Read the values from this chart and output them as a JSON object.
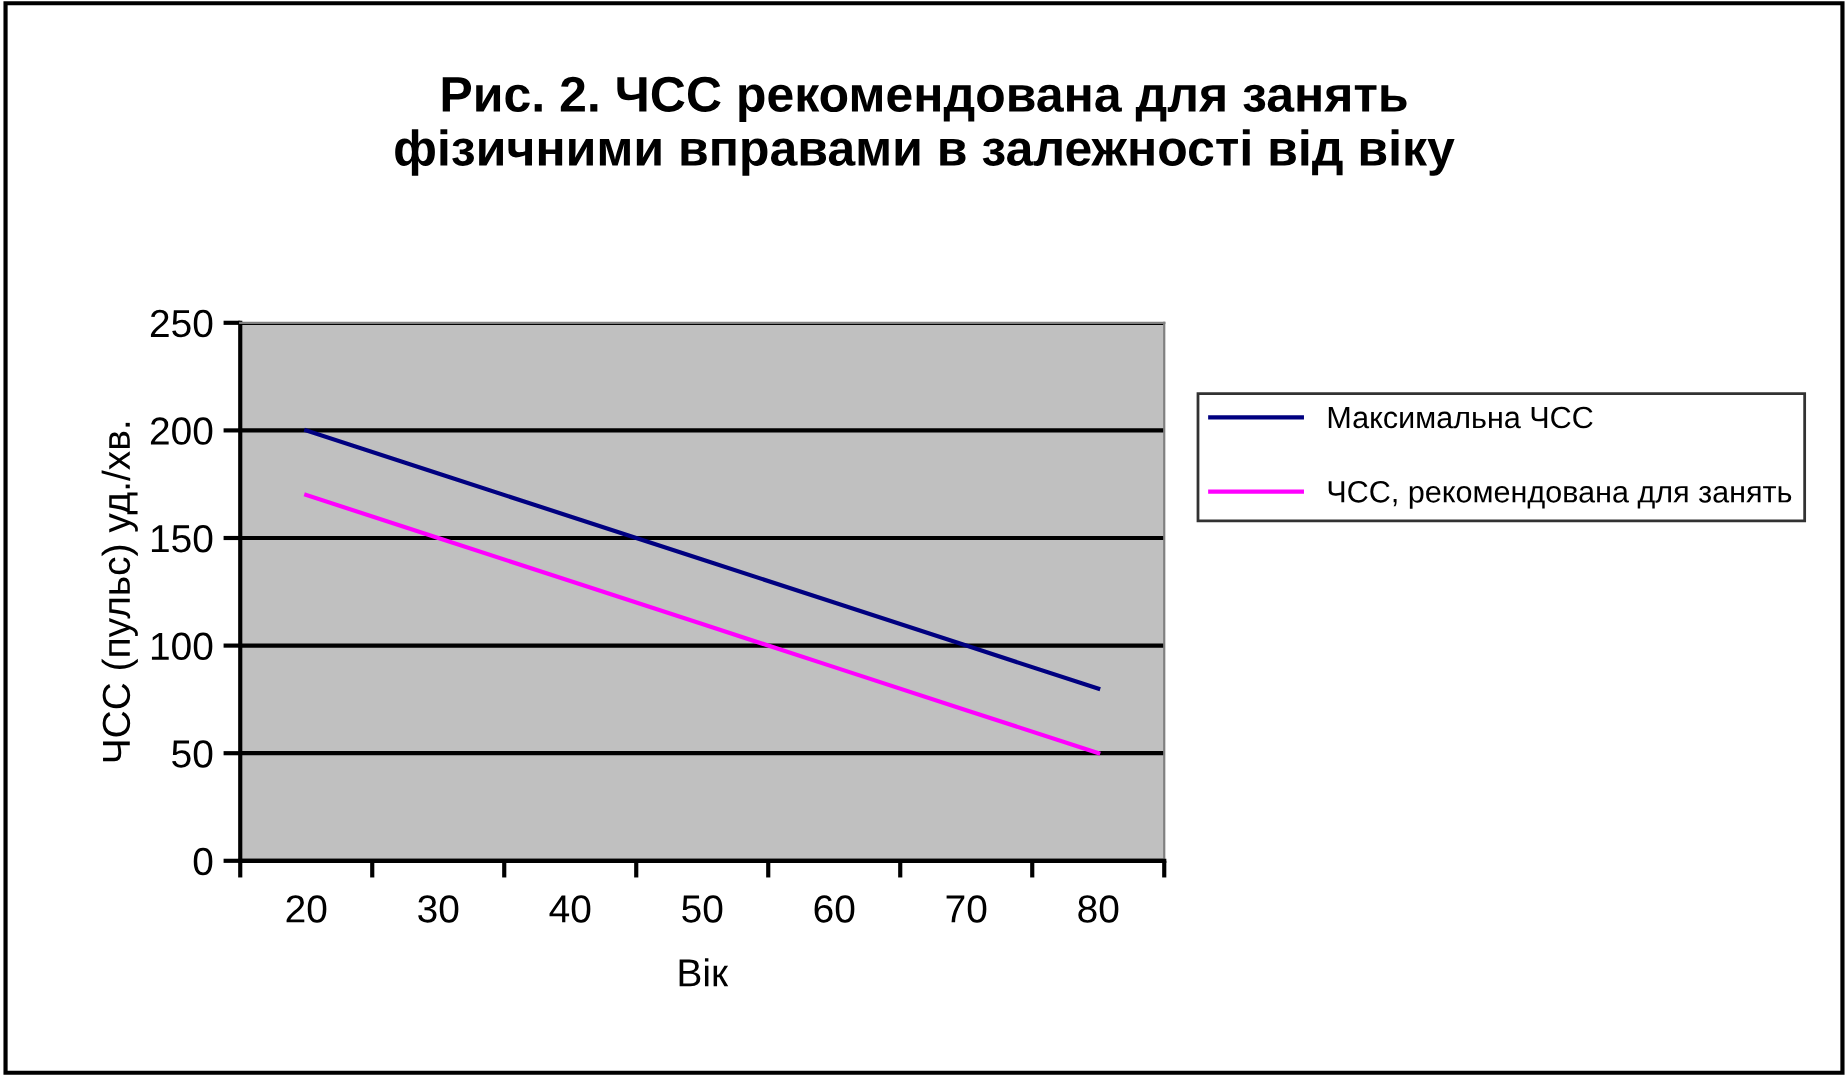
{
  "chart_data": {
    "type": "line",
    "title": "Рис. 2. ЧСС рекомендована для занять\nфізичними вправами в залежності від віку",
    "xlabel": "Вік",
    "ylabel": "ЧСС (пульс) уд./хв.",
    "categories": [
      "20",
      "30",
      "40",
      "50",
      "60",
      "70",
      "80"
    ],
    "series": [
      {
        "name": "Максимальна ЧСС",
        "color": "#000080",
        "values": [
          200,
          180,
          160,
          140,
          120,
          100,
          80
        ]
      },
      {
        "name": "ЧСС, рекомендована для занять",
        "color": "#ff00ff",
        "values": [
          170,
          150,
          130,
          110,
          90,
          70,
          50
        ]
      }
    ],
    "ylim": [
      0,
      250
    ],
    "yticks": [
      0,
      50,
      100,
      150,
      200,
      250
    ],
    "grid": "y",
    "legend": "right",
    "marker": "none",
    "line_style": "solid"
  }
}
